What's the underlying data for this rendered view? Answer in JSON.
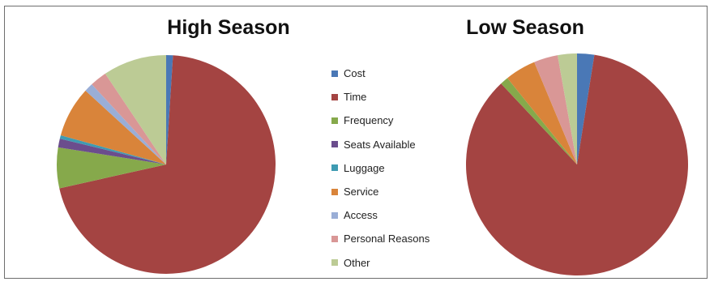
{
  "chart_data": [
    {
      "type": "pie",
      "title": "High Season",
      "categories": [
        "Cost",
        "Time",
        "Frequency",
        "Seats Available",
        "Luggage",
        "Service",
        "Access",
        "Personal Reasons",
        "Other"
      ],
      "values": [
        1.0,
        70.5,
        6.0,
        1.3,
        0.5,
        7.5,
        1.3,
        2.5,
        9.4
      ]
    },
    {
      "type": "pie",
      "title": "Low Season",
      "categories": [
        "Cost",
        "Time",
        "Frequency",
        "Seats Available",
        "Luggage",
        "Service",
        "Access",
        "Personal Reasons",
        "Other"
      ],
      "values": [
        2.5,
        85.5,
        1.2,
        0.0,
        0.0,
        4.5,
        0.0,
        3.5,
        2.8
      ]
    }
  ],
  "legend": {
    "position": "center",
    "items": [
      "Cost",
      "Time",
      "Frequency",
      "Seats Available",
      "Luggage",
      "Service",
      "Access",
      "Personal Reasons",
      "Other"
    ]
  },
  "colors": [
    "#4a78b6",
    "#a44442",
    "#86a94b",
    "#6b4d8d",
    "#3e9bb2",
    "#d9843a",
    "#9aaed6",
    "#d99796",
    "#bccb95"
  ]
}
